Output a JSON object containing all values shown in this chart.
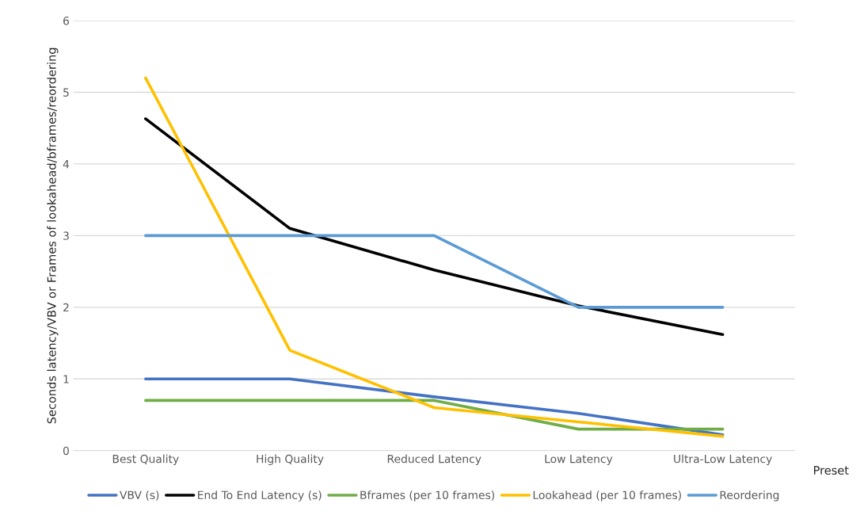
{
  "chart_data": {
    "type": "line",
    "xlabel": "Preset",
    "ylabel": "Seconds latency/VBV or Frames of lookahead/bframes/reordering",
    "categories": [
      "Best Quality",
      "High Quality",
      "Reduced Latency",
      "Low Latency",
      "Ultra-Low Latency"
    ],
    "series": [
      {
        "name": "VBV (s)",
        "color": "#4472c4",
        "values": [
          1,
          1,
          0.75,
          0.52,
          0.22
        ]
      },
      {
        "name": "End To End Latency (s)",
        "color": "#000000",
        "values": [
          4.63,
          3.1,
          2.52,
          2.02,
          1.62
        ]
      },
      {
        "name": "Bframes (per 10 frames)",
        "color": "#70ad47",
        "values": [
          0.7,
          0.7,
          0.7,
          0.3,
          0.3
        ]
      },
      {
        "name": "Lookahead (per 10 frames)",
        "color": "#ffc000",
        "values": [
          5.2,
          1.4,
          0.6,
          0.4,
          0.2
        ]
      },
      {
        "name": "Reordering",
        "color": "#5b9bd5",
        "values": [
          3,
          3,
          3,
          2,
          2
        ]
      }
    ],
    "ylim": [
      0,
      6
    ],
    "yticks": [
      0,
      1,
      2,
      3,
      4,
      5,
      6
    ],
    "grid": "y",
    "legend": "bottom",
    "marker": "none",
    "line_style": "solid"
  }
}
